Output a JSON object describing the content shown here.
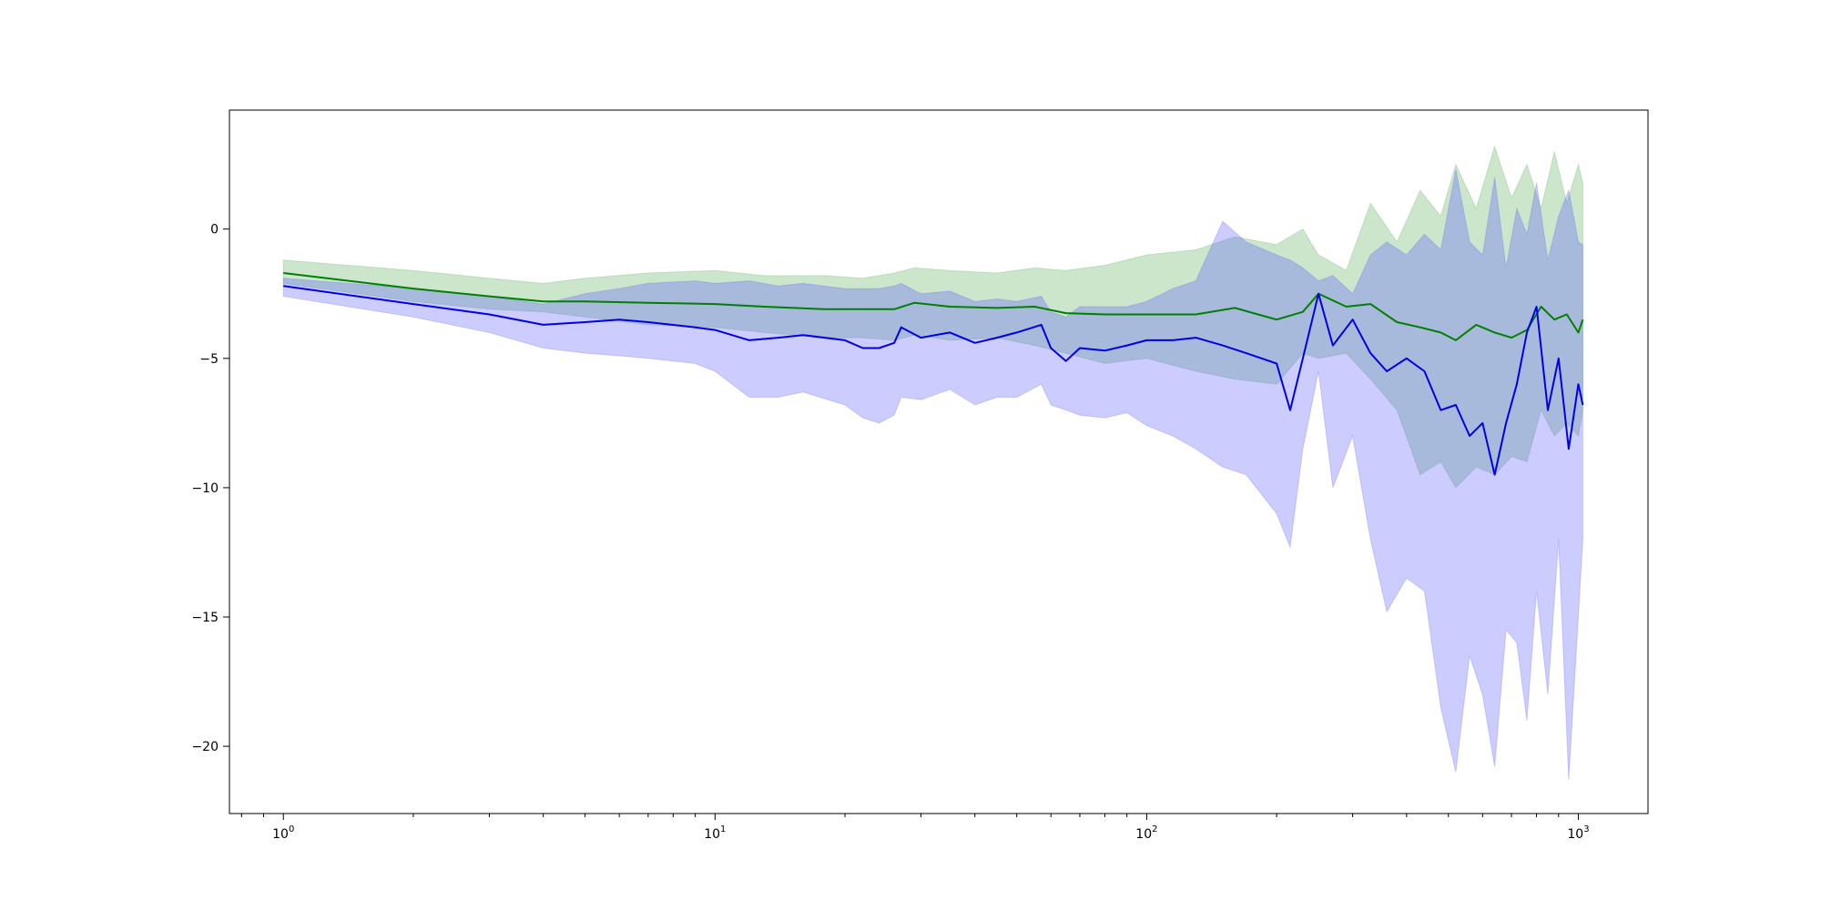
{
  "chart_data": {
    "type": "line",
    "title": "",
    "xlabel": "",
    "ylabel": "",
    "xscale": "log",
    "xlim": [
      0.75,
      1450
    ],
    "ylim": [
      -22.6,
      4.6
    ],
    "grid": false,
    "legend": "none",
    "x_ticks": [
      {
        "base": "10",
        "exp": "0",
        "value": 1
      },
      {
        "base": "10",
        "exp": "1",
        "value": 10
      },
      {
        "base": "10",
        "exp": "2",
        "value": 100
      },
      {
        "base": "10",
        "exp": "3",
        "value": 1000
      }
    ],
    "y_ticks": [
      {
        "label": "0",
        "value": 0
      },
      {
        "label": "−5",
        "value": -5
      },
      {
        "label": "−10",
        "value": -10
      },
      {
        "label": "−15",
        "value": -15
      },
      {
        "label": "−20",
        "value": -20
      }
    ],
    "series": [
      {
        "color": "#008000",
        "band_color": "#008000",
        "band_opacity": 0.2,
        "x": [
          1,
          2,
          3,
          4,
          5,
          7,
          10,
          13,
          18,
          22,
          26,
          29,
          35,
          45,
          55,
          65,
          80,
          100,
          130,
          160,
          200,
          230,
          250,
          290,
          330,
          380,
          430,
          480,
          520,
          580,
          640,
          700,
          760,
          820,
          880,
          940,
          1000,
          1024
        ],
        "y": [
          -1.7,
          -2.3,
          -2.6,
          -2.8,
          -2.8,
          -2.85,
          -2.9,
          -3.0,
          -3.1,
          -3.1,
          -3.1,
          -2.85,
          -3.0,
          -3.05,
          -3.0,
          -3.25,
          -3.3,
          -3.3,
          -3.3,
          -3.05,
          -3.5,
          -3.2,
          -2.5,
          -3.0,
          -2.9,
          -3.6,
          -3.8,
          -4.0,
          -4.3,
          -3.7,
          -4.0,
          -4.2,
          -3.9,
          -3.0,
          -3.5,
          -3.3,
          -4.0,
          -3.5
        ],
        "upper": [
          -1.2,
          -1.6,
          -1.9,
          -2.1,
          -1.9,
          -1.7,
          -1.6,
          -1.8,
          -1.8,
          -1.9,
          -1.7,
          -1.5,
          -1.6,
          -1.7,
          -1.5,
          -1.6,
          -1.4,
          -1.0,
          -0.8,
          -0.3,
          -0.6,
          0.0,
          -1.0,
          -1.6,
          1.0,
          -0.5,
          1.5,
          0.5,
          2.5,
          0.8,
          3.2,
          1.2,
          2.5,
          0.8,
          3.0,
          1.0,
          2.5,
          1.8
        ],
        "lower": [
          -2.1,
          -2.8,
          -3.1,
          -3.2,
          -3.4,
          -3.7,
          -3.8,
          -4.0,
          -4.2,
          -4.2,
          -4.3,
          -4.1,
          -4.3,
          -4.2,
          -4.5,
          -4.8,
          -5.2,
          -5.0,
          -5.5,
          -5.8,
          -6.0,
          -4.8,
          -5.0,
          -4.8,
          -5.8,
          -7.0,
          -9.5,
          -9.0,
          -10.0,
          -9.2,
          -9.5,
          -8.8,
          -9.0,
          -7.0,
          -8.0,
          -7.5,
          -8.0,
          -7.0
        ]
      },
      {
        "color": "#0000e6",
        "band_color": "#5555ff",
        "band_opacity": 0.3,
        "x": [
          1,
          2,
          3,
          4,
          5,
          6,
          7,
          9,
          10,
          12,
          14,
          16,
          20,
          22,
          24,
          26,
          27,
          30,
          35,
          40,
          45,
          50,
          57,
          60,
          65,
          70,
          80,
          90,
          100,
          115,
          130,
          150,
          170,
          200,
          215,
          230,
          250,
          270,
          300,
          330,
          360,
          400,
          440,
          480,
          520,
          560,
          600,
          640,
          680,
          720,
          760,
          800,
          850,
          900,
          950,
          1000,
          1024
        ],
        "y": [
          -2.2,
          -2.9,
          -3.3,
          -3.7,
          -3.6,
          -3.5,
          -3.6,
          -3.8,
          -3.9,
          -4.3,
          -4.2,
          -4.1,
          -4.3,
          -4.6,
          -4.6,
          -4.4,
          -3.8,
          -4.2,
          -4.0,
          -4.4,
          -4.2,
          -4.0,
          -3.7,
          -4.6,
          -5.1,
          -4.6,
          -4.7,
          -4.5,
          -4.3,
          -4.3,
          -4.2,
          -4.5,
          -4.8,
          -5.2,
          -7.0,
          -5.0,
          -2.5,
          -4.5,
          -3.5,
          -4.8,
          -5.5,
          -5.0,
          -5.5,
          -7.0,
          -6.8,
          -8.0,
          -7.5,
          -9.5,
          -7.5,
          -6.0,
          -4.0,
          -3.0,
          -7.0,
          -5.0,
          -8.5,
          -6.0,
          -6.8
        ],
        "upper": [
          -1.9,
          -2.3,
          -2.6,
          -2.9,
          -2.5,
          -2.3,
          -2.1,
          -2.0,
          -2.1,
          -2.0,
          -2.2,
          -2.1,
          -2.3,
          -2.3,
          -2.3,
          -2.2,
          -2.1,
          -2.5,
          -2.4,
          -2.8,
          -2.7,
          -2.8,
          -2.6,
          -3.2,
          -3.4,
          -3.0,
          -3.0,
          -3.0,
          -2.8,
          -2.3,
          -2.0,
          0.3,
          -0.5,
          -1.0,
          -1.2,
          -1.5,
          -2.0,
          -1.8,
          -2.5,
          -1.0,
          -0.5,
          -1.0,
          -0.2,
          -0.8,
          2.3,
          -0.5,
          -1.0,
          2.0,
          -1.5,
          0.8,
          -0.2,
          1.8,
          -1.2,
          0.5,
          1.5,
          -0.5,
          -0.6
        ],
        "lower": [
          -2.6,
          -3.4,
          -4.0,
          -4.6,
          -4.8,
          -4.9,
          -5.0,
          -5.2,
          -5.5,
          -6.5,
          -6.5,
          -6.3,
          -6.8,
          -7.3,
          -7.5,
          -7.2,
          -6.5,
          -6.6,
          -6.2,
          -6.8,
          -6.5,
          -6.5,
          -6.0,
          -6.8,
          -7.0,
          -7.2,
          -7.3,
          -7.1,
          -7.6,
          -8.0,
          -8.5,
          -9.2,
          -9.5,
          -11.0,
          -12.3,
          -8.5,
          -5.5,
          -10.0,
          -8.0,
          -12.0,
          -14.8,
          -13.5,
          -14.0,
          -18.5,
          -21.0,
          -16.5,
          -18.0,
          -20.8,
          -15.5,
          -16.0,
          -19.0,
          -14.0,
          -18.0,
          -12.0,
          -21.3,
          -15.0,
          -12.0
        ]
      }
    ]
  }
}
